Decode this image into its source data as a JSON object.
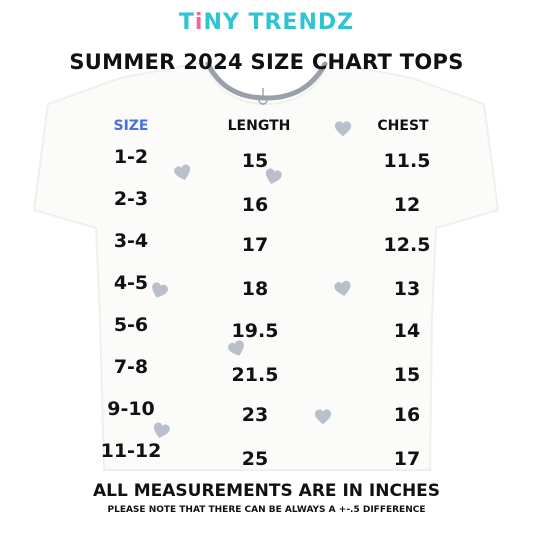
{
  "brand": {
    "name_part1": "T",
    "name_accent": "i",
    "name_part2": "NY TRENDZ"
  },
  "title": "SUMMER 2024 SIZE CHART TOPS",
  "columns": {
    "size": "SIZE",
    "length": "LENGTH",
    "chest": "CHEST"
  },
  "rows": [
    {
      "size": "1-2",
      "length": "15",
      "chest": "11.5"
    },
    {
      "size": "2-3",
      "length": "16",
      "chest": "12"
    },
    {
      "size": "3-4",
      "length": "17",
      "chest": "12.5"
    },
    {
      "size": "4-5",
      "length": "18",
      "chest": "13"
    },
    {
      "size": "5-6",
      "length": "19.5",
      "chest": "14"
    },
    {
      "size": "7-8",
      "length": "21.5",
      "chest": "15"
    },
    {
      "size": "9-10",
      "length": "23",
      "chest": "16"
    },
    {
      "size": "11-12",
      "length": "25",
      "chest": "17"
    }
  ],
  "footer": {
    "main": "ALL MEASUREMENTS ARE IN INCHES",
    "note": "PLEASE NOTE THAT THERE CAN BE ALWAYS A +-.5 DIFFERENCE"
  },
  "colors": {
    "brand": "#2ec4d4",
    "brand_accent": "#f0689b",
    "size_header": "#4a6fe0",
    "heart": "#b9c0cc"
  }
}
